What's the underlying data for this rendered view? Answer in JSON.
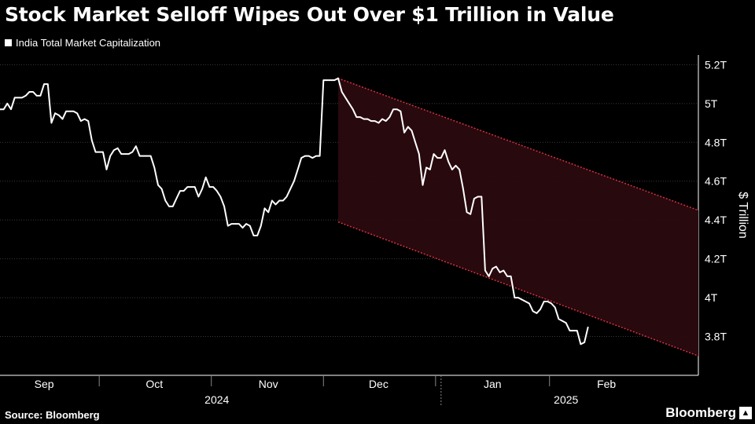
{
  "title": "Stock Market Selloff Wipes Out Over $1 Trillion in Value",
  "source": "Source: Bloomberg",
  "brand": "Bloomberg",
  "colors": {
    "background": "#000000",
    "line": "#ffffff",
    "channel_fill": "#2a0a0f",
    "channel_border": "#d6303e",
    "grid": "#3a3a3a"
  },
  "chart_data": {
    "type": "line",
    "title": "Stock Market Selloff Wipes Out Over $1 Trillion in Value",
    "legend": [
      "India Total Market Capitalization"
    ],
    "ylabel": "$ Trillion",
    "ylim": [
      3.6,
      5.25
    ],
    "y_ticks": [
      3.8,
      4.0,
      4.2,
      4.4,
      4.6,
      4.8,
      5.0,
      5.2
    ],
    "y_tick_labels": [
      "3.8T",
      "4T",
      "4.2T",
      "4.4T",
      "4.6T",
      "4.8T",
      "5T",
      "5.2T"
    ],
    "x_range_days": [
      0,
      190
    ],
    "month_ticks": [
      {
        "label": "Sep",
        "day": 12
      },
      {
        "label": "Oct",
        "day": 42
      },
      {
        "label": "Nov",
        "day": 73
      },
      {
        "label": "Dec",
        "day": 103
      },
      {
        "label": "Jan",
        "day": 134
      },
      {
        "label": "Feb",
        "day": 165
      }
    ],
    "year_labels": [
      {
        "label": "2024",
        "day": 59
      },
      {
        "label": "2025",
        "day": 154
      }
    ],
    "year_divider_day": 120,
    "grid": true,
    "legend_position": "top-left",
    "series": [
      {
        "name": "India Total Market Capitalization",
        "points": [
          [
            0,
            4.97
          ],
          [
            1,
            4.97
          ],
          [
            2,
            5.0
          ],
          [
            3,
            4.97
          ],
          [
            4,
            5.03
          ],
          [
            5,
            5.03
          ],
          [
            6,
            5.03
          ],
          [
            7,
            5.04
          ],
          [
            8,
            5.06
          ],
          [
            9,
            5.06
          ],
          [
            10,
            5.04
          ],
          [
            11,
            5.04
          ],
          [
            12,
            5.1
          ],
          [
            13,
            5.1
          ],
          [
            14,
            4.9
          ],
          [
            15,
            4.95
          ],
          [
            16,
            4.94
          ],
          [
            17,
            4.92
          ],
          [
            18,
            4.96
          ],
          [
            19,
            4.96
          ],
          [
            20,
            4.96
          ],
          [
            21,
            4.95
          ],
          [
            22,
            4.91
          ],
          [
            23,
            4.92
          ],
          [
            24,
            4.91
          ],
          [
            25,
            4.81
          ],
          [
            26,
            4.75
          ],
          [
            27,
            4.75
          ],
          [
            28,
            4.75
          ],
          [
            29,
            4.66
          ],
          [
            30,
            4.73
          ],
          [
            31,
            4.76
          ],
          [
            32,
            4.77
          ],
          [
            33,
            4.74
          ],
          [
            34,
            4.74
          ],
          [
            35,
            4.74
          ],
          [
            36,
            4.75
          ],
          [
            37,
            4.78
          ],
          [
            38,
            4.73
          ],
          [
            39,
            4.73
          ],
          [
            40,
            4.73
          ],
          [
            41,
            4.73
          ],
          [
            42,
            4.67
          ],
          [
            43,
            4.58
          ],
          [
            44,
            4.56
          ],
          [
            45,
            4.5
          ],
          [
            46,
            4.47
          ],
          [
            47,
            4.47
          ],
          [
            48,
            4.51
          ],
          [
            49,
            4.55
          ],
          [
            50,
            4.55
          ],
          [
            51,
            4.57
          ],
          [
            52,
            4.57
          ],
          [
            53,
            4.57
          ],
          [
            54,
            4.52
          ],
          [
            55,
            4.56
          ],
          [
            56,
            4.62
          ],
          [
            57,
            4.57
          ],
          [
            58,
            4.57
          ],
          [
            59,
            4.55
          ],
          [
            60,
            4.52
          ],
          [
            61,
            4.47
          ],
          [
            62,
            4.37
          ],
          [
            63,
            4.38
          ],
          [
            64,
            4.38
          ],
          [
            65,
            4.38
          ],
          [
            66,
            4.36
          ],
          [
            67,
            4.38
          ],
          [
            68,
            4.37
          ],
          [
            69,
            4.32
          ],
          [
            70,
            4.32
          ],
          [
            71,
            4.37
          ],
          [
            72,
            4.46
          ],
          [
            73,
            4.44
          ],
          [
            74,
            4.5
          ],
          [
            75,
            4.48
          ],
          [
            76,
            4.5
          ],
          [
            77,
            4.5
          ],
          [
            78,
            4.52
          ],
          [
            79,
            4.56
          ],
          [
            80,
            4.6
          ],
          [
            81,
            4.66
          ],
          [
            82,
            4.72
          ],
          [
            83,
            4.73
          ],
          [
            84,
            4.73
          ],
          [
            85,
            4.72
          ],
          [
            86,
            4.73
          ],
          [
            87,
            4.73
          ],
          [
            88,
            5.12
          ],
          [
            89,
            5.12
          ],
          [
            90,
            5.12
          ],
          [
            91,
            5.12
          ],
          [
            92,
            5.13
          ],
          [
            93,
            5.06
          ],
          [
            94,
            5.03
          ],
          [
            95,
            5.0
          ],
          [
            96,
            4.97
          ],
          [
            97,
            4.93
          ],
          [
            98,
            4.93
          ],
          [
            99,
            4.92
          ],
          [
            100,
            4.92
          ],
          [
            101,
            4.91
          ],
          [
            102,
            4.91
          ],
          [
            103,
            4.9
          ],
          [
            104,
            4.92
          ],
          [
            105,
            4.91
          ],
          [
            106,
            4.93
          ],
          [
            107,
            4.97
          ],
          [
            108,
            4.97
          ],
          [
            109,
            4.96
          ],
          [
            110,
            4.85
          ],
          [
            111,
            4.88
          ],
          [
            112,
            4.86
          ],
          [
            113,
            4.8
          ],
          [
            114,
            4.74
          ],
          [
            115,
            4.58
          ],
          [
            116,
            4.67
          ],
          [
            117,
            4.66
          ],
          [
            118,
            4.74
          ],
          [
            119,
            4.72
          ],
          [
            120,
            4.72
          ],
          [
            121,
            4.76
          ],
          [
            122,
            4.7
          ],
          [
            123,
            4.66
          ],
          [
            124,
            4.68
          ],
          [
            125,
            4.66
          ],
          [
            126,
            4.56
          ],
          [
            127,
            4.44
          ],
          [
            128,
            4.43
          ],
          [
            129,
            4.51
          ],
          [
            130,
            4.52
          ],
          [
            131,
            4.52
          ],
          [
            132,
            4.14
          ],
          [
            133,
            4.11
          ],
          [
            134,
            4.15
          ],
          [
            135,
            4.16
          ],
          [
            136,
            4.13
          ],
          [
            137,
            4.14
          ],
          [
            138,
            4.11
          ],
          [
            139,
            4.11
          ],
          [
            140,
            4.0
          ],
          [
            141,
            4.0
          ],
          [
            142,
            3.99
          ],
          [
            143,
            3.98
          ],
          [
            144,
            3.97
          ],
          [
            145,
            3.93
          ],
          [
            146,
            3.92
          ],
          [
            147,
            3.94
          ],
          [
            148,
            3.98
          ],
          [
            149,
            3.98
          ],
          [
            150,
            3.97
          ],
          [
            151,
            3.95
          ],
          [
            152,
            3.89
          ],
          [
            153,
            3.88
          ],
          [
            154,
            3.87
          ],
          [
            155,
            3.83
          ],
          [
            156,
            3.83
          ],
          [
            157,
            3.83
          ],
          [
            158,
            3.76
          ],
          [
            159,
            3.77
          ],
          [
            160,
            3.85
          ]
        ]
      }
    ],
    "channel": {
      "upper": [
        [
          92,
          5.13
        ],
        [
          190,
          4.45
        ]
      ],
      "lower": [
        [
          92,
          4.39
        ],
        [
          190,
          3.7
        ]
      ]
    }
  },
  "legend_label": "India Total Market Capitalization"
}
